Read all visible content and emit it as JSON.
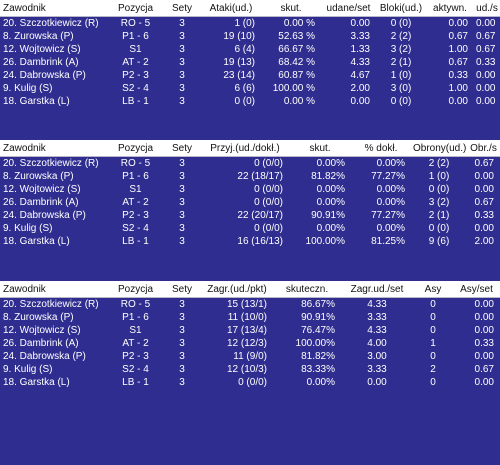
{
  "tables": [
    {
      "headers": [
        "Zawodnik",
        "Pozycja",
        "Sety",
        "Ataki(ud.)",
        "skut.",
        "udane/set",
        "Bloki(ud.)",
        "aktywn.",
        "ud./s"
      ],
      "rows": [
        [
          "20. Szczotkiewicz (R)",
          "RO - 5",
          "3",
          "1 (0)",
          "0.00 %",
          "0.00",
          "0 (0)",
          "0.00",
          "0.00"
        ],
        [
          "8. Zurowska (P)",
          "P1 - 6",
          "3",
          "19 (10)",
          "52.63 %",
          "3.33",
          "2 (2)",
          "0.67",
          "0.67"
        ],
        [
          "12. Wojtowicz (S)",
          "S1",
          "3",
          "6 (4)",
          "66.67 %",
          "1.33",
          "3 (2)",
          "1.00",
          "0.67"
        ],
        [
          "26. Dambrink (A)",
          "AT - 2",
          "3",
          "19 (13)",
          "68.42 %",
          "4.33",
          "2 (1)",
          "0.67",
          "0.33"
        ],
        [
          "24. Dabrowska (P)",
          "P2 - 3",
          "3",
          "23 (14)",
          "60.87 %",
          "4.67",
          "1 (0)",
          "0.33",
          "0.00"
        ],
        [
          "9. Kulig (S)",
          "S2 - 4",
          "3",
          "6 (6)",
          "100.00 %",
          "2.00",
          "3 (0)",
          "1.00",
          "0.00"
        ],
        [
          "18. Garstka (L)",
          "LB - 1",
          "3",
          "0 (0)",
          "0.00 %",
          "0.00",
          "0 (0)",
          "0.00",
          "0.00"
        ]
      ]
    },
    {
      "headers": [
        "Zawodnik",
        "Pozycja",
        "Sety",
        "Przyj.(ud./dokł.)",
        "skut.",
        "% dokł.",
        "Obrony(ud.)",
        "Obr./s"
      ],
      "rows": [
        [
          "20. Szczotkiewicz (R)",
          "RO - 5",
          "3",
          "0 (0/0)",
          "0.00%",
          "0.00%",
          "2 (2)",
          "0.67"
        ],
        [
          "8. Zurowska (P)",
          "P1 - 6",
          "3",
          "22 (18/17)",
          "81.82%",
          "77.27%",
          "1 (0)",
          "0.00"
        ],
        [
          "12. Wojtowicz (S)",
          "S1",
          "3",
          "0 (0/0)",
          "0.00%",
          "0.00%",
          "0 (0)",
          "0.00"
        ],
        [
          "26. Dambrink (A)",
          "AT - 2",
          "3",
          "0 (0/0)",
          "0.00%",
          "0.00%",
          "3 (2)",
          "0.67"
        ],
        [
          "24. Dabrowska (P)",
          "P2 - 3",
          "3",
          "22 (20/17)",
          "90.91%",
          "77.27%",
          "2 (1)",
          "0.33"
        ],
        [
          "9. Kulig (S)",
          "S2 - 4",
          "3",
          "0 (0/0)",
          "0.00%",
          "0.00%",
          "0 (0)",
          "0.00"
        ],
        [
          "18. Garstka (L)",
          "LB - 1",
          "3",
          "16 (16/13)",
          "100.00%",
          "81.25%",
          "9 (6)",
          "2.00"
        ]
      ]
    },
    {
      "headers": [
        "Zawodnik",
        "Pozycja",
        "Sety",
        "Zagr.(ud./pkt)",
        "skuteczn.",
        "Zagr.ud./set",
        "Asy",
        "Asy/set"
      ],
      "rows": [
        [
          "20. Szczotkiewicz (R)",
          "RO - 5",
          "3",
          "15 (13/1)",
          "86.67%",
          "4.33",
          "0",
          "0.00"
        ],
        [
          "8. Zurowska (P)",
          "P1 - 6",
          "3",
          "11 (10/0)",
          "90.91%",
          "3.33",
          "0",
          "0.00"
        ],
        [
          "12. Wojtowicz (S)",
          "S1",
          "3",
          "17 (13/4)",
          "76.47%",
          "4.33",
          "0",
          "0.00"
        ],
        [
          "26. Dambrink (A)",
          "AT - 2",
          "3",
          "12 (12/3)",
          "100.00%",
          "4.00",
          "1",
          "0.33"
        ],
        [
          "24. Dabrowska (P)",
          "P2 - 3",
          "3",
          "11 (9/0)",
          "81.82%",
          "3.00",
          "0",
          "0.00"
        ],
        [
          "9. Kulig (S)",
          "S2 - 4",
          "3",
          "12 (10/3)",
          "83.33%",
          "3.33",
          "2",
          "0.67"
        ],
        [
          "18. Garstka (L)",
          "LB - 1",
          "3",
          "0 (0/0)",
          "0.00%",
          "0.00",
          "0",
          "0.00"
        ]
      ]
    }
  ]
}
